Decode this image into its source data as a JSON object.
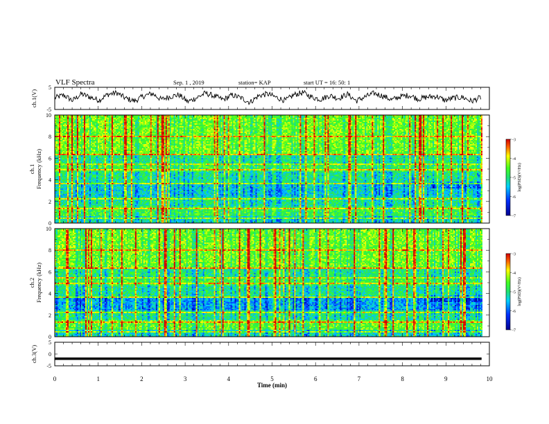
{
  "header": {
    "title": "VLF Spectra",
    "date": "Sep. 1 , 2019",
    "station": "station= KAP",
    "start": "start UT = 16: 50: 1"
  },
  "chart_data": [
    {
      "type": "line",
      "panel": "ch1-waveform",
      "ylabel": "ch.1(V)",
      "ylim": [
        -5,
        5
      ],
      "yticks": [
        "5",
        "-5"
      ],
      "xlim": [
        0,
        10
      ],
      "series": [
        {
          "values": [
            0.2,
            1.5,
            -1.0,
            2.0,
            0.5,
            -0.8,
            1.8,
            2.5,
            0.0,
            -1.2,
            1.0,
            2.2,
            -0.5,
            0.8,
            1.6,
            -1.5,
            0.3,
            2.4,
            1.0,
            -0.6,
            1.5,
            0.2,
            -1.8,
            1.2,
            2.0,
            0.4,
            -1.0,
            1.7,
            2.6,
            0.5,
            -0.4,
            1.3,
            0.0,
            1.9,
            -1.1,
            0.7,
            2.3,
            1.1,
            -0.7,
            0.9,
            1.4,
            -0.3,
            0.6,
            1.0,
            -0.9,
            0.2,
            0.5,
            -1.3,
            0.4,
            1.2
          ]
        }
      ]
    },
    {
      "type": "heatmap",
      "panel": "ch1-spectrogram",
      "ylabel": "Frequency (kHz)",
      "channel_label": "ch.1",
      "ylim": [
        0,
        10
      ],
      "yticks": [
        "0",
        "2",
        "4",
        "6",
        "8",
        "10"
      ],
      "xlim": [
        0,
        10
      ],
      "colorbar": {
        "label": "log(PSD)(V²/Hz)",
        "ticks": [
          "-3",
          "-4",
          "-5",
          "-6",
          "-7"
        ],
        "range": [
          -7,
          -3
        ]
      }
    },
    {
      "type": "heatmap",
      "panel": "ch2-spectrogram",
      "ylabel": "Frequency (kHz)",
      "channel_label": "ch.2",
      "ylim": [
        0,
        10
      ],
      "yticks": [
        "0",
        "2",
        "4",
        "6",
        "8",
        "10"
      ],
      "xlim": [
        0,
        10
      ],
      "colorbar": {
        "label": "log(PSD)(V²/Hz)",
        "ticks": [
          "-3",
          "-4",
          "-5",
          "-6",
          "-7"
        ],
        "range": [
          -7,
          -3
        ]
      }
    },
    {
      "type": "line",
      "panel": "ch3-waveform",
      "ylabel": "ch.3(V)",
      "ylim": [
        -5,
        5
      ],
      "yticks": [
        "5",
        "0",
        "-5"
      ],
      "xlim": [
        0,
        10
      ],
      "series": [
        {
          "values": [
            -2,
            -2
          ]
        }
      ]
    }
  ],
  "xaxis": {
    "label": "Time (min)",
    "ticks": [
      "0",
      "1",
      "2",
      "3",
      "4",
      "5",
      "6",
      "7",
      "8",
      "9",
      "10"
    ]
  }
}
